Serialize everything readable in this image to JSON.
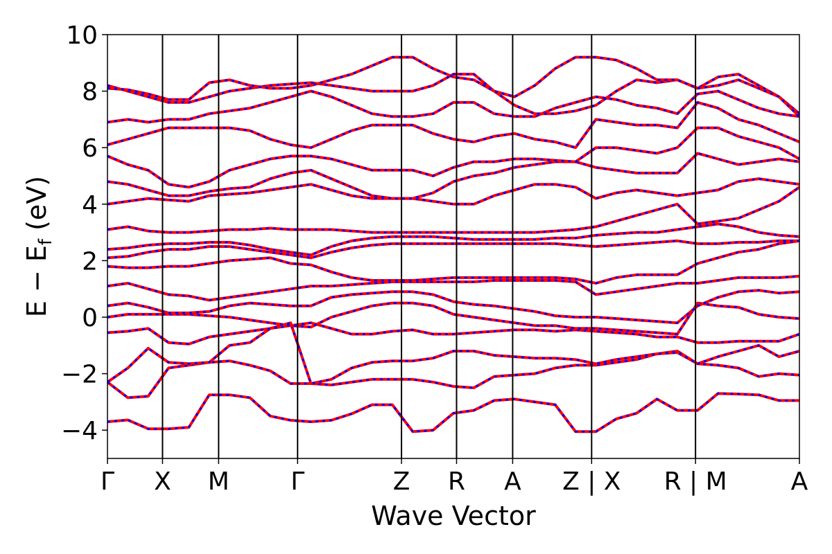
{
  "chart_data": {
    "type": "line",
    "xlabel": "Wave Vector",
    "ylabel_parts": {
      "main": "E − E",
      "sub": "f",
      "unit": " (eV)"
    },
    "ylim": [
      -5,
      10
    ],
    "yticks": [
      {
        "value": -4,
        "label": "−4"
      },
      {
        "value": -2,
        "label": "−2"
      },
      {
        "value": 0,
        "label": "0"
      },
      {
        "value": 2,
        "label": "2"
      },
      {
        "value": 4,
        "label": "4"
      },
      {
        "value": 6,
        "label": "6"
      },
      {
        "value": 8,
        "label": "8"
      },
      {
        "value": 10,
        "label": "10"
      }
    ],
    "kpath_segments": [
      [
        0.0,
        0.53
      ],
      [
        0.53,
        1.07
      ],
      [
        1.07,
        1.83
      ],
      [
        1.83,
        2.83
      ],
      [
        2.83,
        3.36
      ],
      [
        3.36,
        3.9
      ],
      [
        3.9,
        4.66
      ],
      [
        4.66,
        5.66
      ],
      [
        5.66,
        6.66
      ]
    ],
    "xticks": [
      {
        "value": 0.0,
        "label": "Γ"
      },
      {
        "value": 0.53,
        "label": "X"
      },
      {
        "value": 1.07,
        "label": "M"
      },
      {
        "value": 1.83,
        "label": "Γ"
      },
      {
        "value": 2.83,
        "label": "Z"
      },
      {
        "value": 3.36,
        "label": "R"
      },
      {
        "value": 3.9,
        "label": "A"
      },
      {
        "value": 4.66,
        "label": "Z | X"
      },
      {
        "value": 5.66,
        "label": "R | M"
      },
      {
        "value": 6.66,
        "label": "A"
      }
    ],
    "vlines": [
      0.53,
      1.07,
      1.83,
      2.83,
      3.36,
      3.9,
      4.66,
      5.66
    ],
    "xlim": [
      0.0,
      6.66
    ],
    "series_styles": [
      {
        "role": "band-solid",
        "color": "#ff0000"
      },
      {
        "role": "band-dashed",
        "color": "#0000ff"
      }
    ],
    "bands": [
      [
        [
          -3.7,
          -3.64,
          -3.95,
          -3.95,
          -3.9,
          -2.75,
          -2.75,
          -2.85,
          -3.5,
          -3.65,
          -3.7,
          -3.65,
          -3.42,
          -3.1,
          -3.1,
          -4.05,
          -4.0,
          -3.4,
          -3.3,
          -2.95,
          -2.9,
          -3.0,
          -3.1,
          -4.05,
          -4.05,
          -3.6,
          -3.4,
          -2.9,
          -3.3,
          -3.3,
          -2.7,
          -2.72,
          -2.75,
          -2.95,
          -2.95
        ],
        [
          -2.3,
          -2.85,
          -2.8,
          -1.8,
          -1.7,
          -1.6,
          -1.55,
          -1.7,
          -1.9,
          -2.35,
          -2.35,
          -2.4,
          -2.3,
          -2.2,
          -2.2,
          -2.2,
          -2.3,
          -2.45,
          -2.5,
          -2.1,
          -2.05,
          -2.0,
          -1.8,
          -1.7,
          -1.7,
          -1.6,
          -1.5,
          -1.3,
          -1.2,
          -1.65,
          -1.7,
          -1.8,
          -2.1,
          -2.0,
          -2.05
        ],
        [
          -2.3,
          -1.8,
          -1.1,
          -1.6,
          -1.65,
          -1.6,
          -1.0,
          -0.9,
          -0.4,
          -0.2,
          -2.35,
          -2.2,
          -1.8,
          -1.6,
          -1.55,
          -1.55,
          -1.45,
          -1.2,
          -1.2,
          -1.35,
          -1.4,
          -1.45,
          -1.45,
          -1.5,
          -1.65,
          -1.5,
          -1.4,
          -1.3,
          -1.25,
          -1.65,
          -1.4,
          -1.2,
          -1.0,
          -1.4,
          -1.2
        ],
        [
          -0.55,
          -0.5,
          -0.4,
          -0.9,
          -0.95,
          -0.7,
          -0.6,
          -0.5,
          -0.4,
          -0.3,
          -0.2,
          -0.4,
          -0.6,
          -0.6,
          -0.5,
          -0.45,
          -0.6,
          -0.6,
          -0.55,
          -0.5,
          -0.45,
          -0.45,
          -0.5,
          -0.45,
          -0.5,
          -0.55,
          -0.6,
          -0.7,
          -0.7,
          -0.9,
          -0.9,
          -0.85,
          -0.85,
          -0.85,
          -0.6
        ],
        [
          0.0,
          0.1,
          0.1,
          0.1,
          0.1,
          0.05,
          0.0,
          -0.1,
          -0.2,
          -0.3,
          -0.35,
          0.0,
          0.2,
          0.4,
          0.5,
          0.5,
          0.4,
          0.1,
          0.0,
          -0.1,
          -0.2,
          -0.3,
          -0.3,
          -0.4,
          -0.4,
          -0.45,
          -0.5,
          -0.55,
          -0.6,
          0.5,
          0.4,
          0.35,
          0.1,
          0.0,
          -0.05
        ],
        [
          0.4,
          0.5,
          0.35,
          0.15,
          0.15,
          0.2,
          0.4,
          0.5,
          0.45,
          0.4,
          0.4,
          0.7,
          0.8,
          0.85,
          0.9,
          0.9,
          0.8,
          0.55,
          0.45,
          0.4,
          0.3,
          0.2,
          0.05,
          0.0,
          0.0,
          -0.05,
          -0.1,
          -0.15,
          -0.2,
          0.4,
          0.7,
          0.9,
          0.95,
          0.85,
          0.9
        ],
        [
          1.1,
          1.2,
          1.0,
          0.8,
          0.75,
          0.6,
          0.7,
          0.8,
          0.9,
          1.0,
          1.1,
          1.1,
          1.15,
          1.2,
          1.25,
          1.25,
          1.25,
          1.25,
          1.25,
          1.3,
          1.3,
          1.3,
          1.3,
          1.25,
          0.8,
          0.9,
          1.0,
          1.1,
          1.2,
          1.2,
          1.3,
          1.4,
          1.4,
          1.4,
          1.45
        ],
        [
          1.8,
          1.75,
          1.75,
          1.8,
          1.8,
          1.9,
          2.0,
          2.05,
          2.1,
          1.9,
          1.85,
          1.6,
          1.4,
          1.3,
          1.3,
          1.3,
          1.35,
          1.4,
          1.4,
          1.4,
          1.4,
          1.4,
          1.4,
          1.35,
          1.2,
          1.4,
          1.5,
          1.5,
          1.5,
          1.9,
          2.1,
          2.3,
          2.4,
          2.6,
          2.7
        ],
        [
          2.1,
          2.15,
          2.3,
          2.4,
          2.4,
          2.5,
          2.5,
          2.4,
          2.3,
          2.2,
          2.1,
          2.3,
          2.45,
          2.55,
          2.6,
          2.6,
          2.6,
          2.6,
          2.6,
          2.6,
          2.6,
          2.6,
          2.6,
          2.55,
          2.5,
          2.55,
          2.6,
          2.65,
          2.7,
          2.6,
          2.6,
          2.65,
          2.65,
          2.7,
          2.7
        ],
        [
          2.4,
          2.45,
          2.55,
          2.6,
          2.6,
          2.65,
          2.65,
          2.55,
          2.4,
          2.3,
          2.2,
          2.5,
          2.7,
          2.8,
          2.85,
          2.85,
          2.85,
          2.8,
          2.75,
          2.75,
          2.75,
          2.75,
          2.8,
          2.8,
          2.9,
          2.95,
          3.0,
          3.0,
          3.1,
          3.2,
          3.3,
          3.2,
          3.0,
          2.9,
          2.85
        ],
        [
          3.1,
          3.2,
          3.05,
          3.0,
          3.0,
          3.05,
          3.1,
          3.1,
          3.15,
          3.1,
          3.1,
          3.1,
          3.05,
          3.0,
          3.0,
          3.0,
          3.0,
          3.0,
          3.0,
          3.0,
          3.0,
          3.0,
          3.05,
          3.1,
          3.2,
          3.4,
          3.6,
          3.8,
          4.0,
          3.3,
          3.4,
          3.5,
          3.8,
          4.1,
          4.6
        ],
        [
          4.0,
          4.1,
          4.2,
          4.15,
          4.1,
          4.3,
          4.35,
          4.4,
          4.5,
          4.6,
          4.7,
          4.5,
          4.3,
          4.2,
          4.2,
          4.2,
          4.1,
          4.0,
          4.0,
          4.3,
          4.5,
          4.7,
          4.7,
          4.6,
          4.2,
          4.4,
          4.5,
          4.4,
          4.3,
          4.4,
          4.5,
          4.8,
          4.9,
          4.8,
          4.7
        ],
        [
          4.8,
          4.7,
          4.5,
          4.3,
          4.3,
          4.45,
          4.55,
          4.6,
          4.9,
          5.1,
          5.2,
          4.9,
          4.6,
          4.3,
          4.2,
          4.2,
          4.4,
          4.8,
          5.0,
          5.1,
          5.3,
          5.4,
          5.5,
          5.5,
          5.3,
          5.2,
          5.1,
          5.1,
          5.1,
          5.8,
          5.6,
          5.4,
          5.5,
          5.6,
          5.5
        ],
        [
          5.7,
          5.4,
          5.2,
          4.7,
          4.6,
          4.8,
          5.2,
          5.4,
          5.6,
          5.7,
          5.7,
          5.6,
          5.4,
          5.2,
          5.2,
          5.2,
          5.0,
          5.3,
          5.5,
          5.5,
          5.6,
          5.6,
          5.55,
          5.5,
          6.0,
          6.0,
          5.9,
          5.8,
          6.0,
          6.7,
          6.7,
          6.4,
          6.2,
          6.0,
          5.6
        ],
        [
          6.1,
          6.3,
          6.5,
          6.7,
          6.7,
          6.7,
          6.7,
          6.6,
          6.3,
          6.1,
          6.0,
          6.3,
          6.6,
          6.8,
          6.8,
          6.8,
          6.5,
          6.3,
          6.2,
          6.4,
          6.5,
          6.3,
          6.2,
          6.0,
          7.0,
          6.9,
          6.8,
          6.8,
          6.7,
          7.6,
          7.4,
          7.0,
          6.8,
          6.5,
          6.2
        ],
        [
          6.9,
          7.0,
          6.9,
          7.0,
          7.0,
          7.2,
          7.3,
          7.4,
          7.6,
          7.8,
          8.0,
          7.8,
          7.5,
          7.2,
          7.1,
          7.1,
          7.2,
          7.6,
          7.6,
          7.2,
          7.1,
          7.1,
          7.4,
          7.6,
          7.8,
          7.7,
          7.5,
          7.4,
          7.2,
          7.9,
          8.0,
          7.7,
          7.4,
          7.2,
          7.1
        ],
        [
          8.2,
          8.0,
          7.8,
          7.6,
          7.6,
          7.8,
          8.0,
          8.1,
          8.2,
          8.25,
          8.3,
          8.2,
          8.1,
          8.0,
          8.0,
          8.0,
          8.2,
          8.6,
          8.6,
          8.0,
          7.5,
          7.2,
          7.2,
          7.3,
          7.5,
          8.0,
          8.4,
          8.3,
          8.4,
          8.1,
          8.5,
          8.6,
          8.2,
          7.8,
          7.2
        ],
        [
          8.1,
          8.05,
          7.9,
          7.7,
          7.7,
          8.3,
          8.4,
          8.2,
          8.1,
          8.1,
          8.2,
          8.4,
          8.6,
          8.9,
          9.2,
          9.2,
          8.8,
          8.5,
          8.4,
          8.0,
          7.8,
          8.2,
          8.8,
          9.2,
          9.2,
          9.1,
          8.8,
          8.4,
          8.4,
          8.1,
          8.2,
          8.4,
          8.1,
          7.8,
          7.1
        ]
      ]
    ]
  }
}
